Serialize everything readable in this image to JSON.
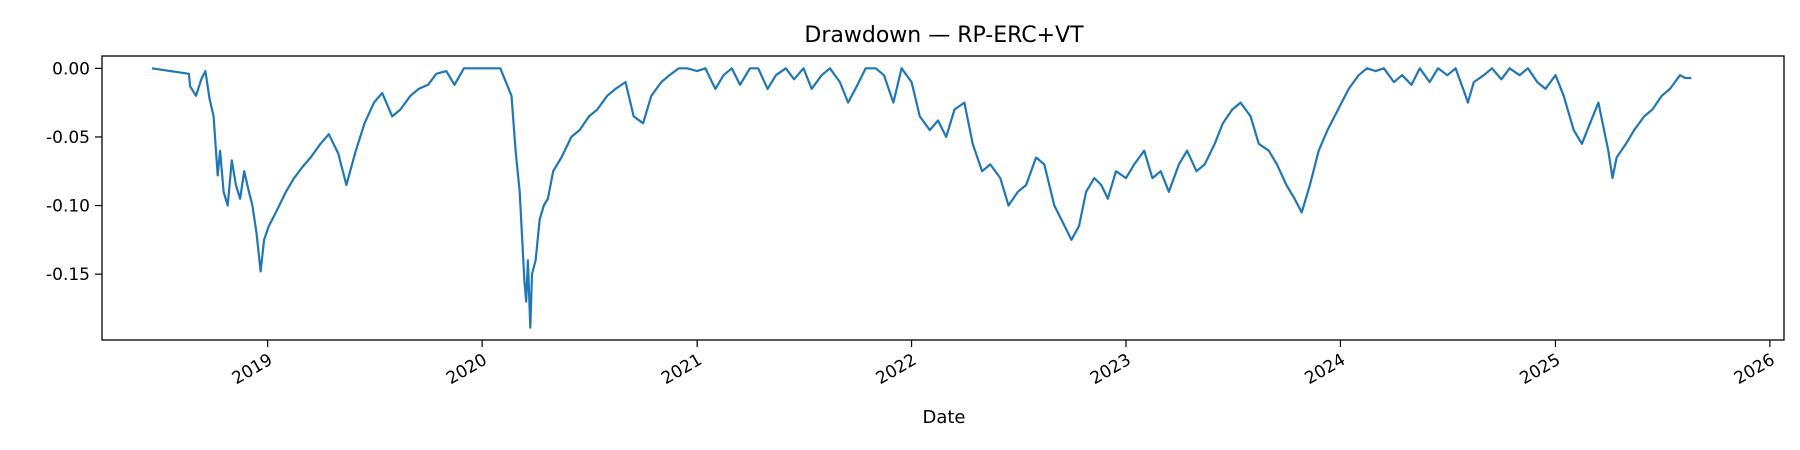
{
  "chart_data": {
    "type": "line",
    "title": "Drawdown — RP-ERC+VT",
    "xlabel": "Date",
    "ylabel": "",
    "xlim": [
      "2018-03-25",
      "2026-01-25"
    ],
    "ylim": [
      -0.198,
      0.009
    ],
    "x_ticks": [
      "2019",
      "2020",
      "2021",
      "2022",
      "2023",
      "2024",
      "2025",
      "2026"
    ],
    "y_ticks": [
      "0.00",
      "-0.05",
      "-0.10",
      "-0.15"
    ],
    "grid": false,
    "legend": "none",
    "line_color": "#1f77b4",
    "series": [
      {
        "x": [
          "2018-06-18",
          "2018-08-20",
          "2018-08-22",
          "2018-09-01",
          "2018-09-10",
          "2018-09-17",
          "2018-09-24",
          "2018-10-01",
          "2018-10-08",
          "2018-10-12",
          "2018-10-18",
          "2018-10-25",
          "2018-11-01",
          "2018-11-08",
          "2018-11-15",
          "2018-11-22",
          "2018-11-29",
          "2018-12-06",
          "2018-12-13",
          "2018-12-20",
          "2018-12-26",
          "2019-01-03",
          "2019-01-15",
          "2019-02-01",
          "2019-02-15",
          "2019-03-01",
          "2019-03-15",
          "2019-04-01",
          "2019-04-15",
          "2019-05-01",
          "2019-05-15",
          "2019-05-31",
          "2019-06-15",
          "2019-07-01",
          "2019-07-15",
          "2019-08-01",
          "2019-08-15",
          "2019-09-01",
          "2019-09-15",
          "2019-10-01",
          "2019-10-15",
          "2019-11-01",
          "2019-11-15",
          "2019-12-01",
          "2019-12-15",
          "2020-01-01",
          "2020-01-15",
          "2020-02-01",
          "2020-02-20",
          "2020-02-27",
          "2020-03-05",
          "2020-03-10",
          "2020-03-13",
          "2020-03-16",
          "2020-03-19",
          "2020-03-23",
          "2020-03-26",
          "2020-04-01",
          "2020-04-08",
          "2020-04-15",
          "2020-04-22",
          "2020-05-01",
          "2020-05-15",
          "2020-06-01",
          "2020-06-15",
          "2020-07-01",
          "2020-07-15",
          "2020-08-01",
          "2020-08-15",
          "2020-09-01",
          "2020-09-15",
          "2020-10-01",
          "2020-10-15",
          "2020-11-01",
          "2020-11-15",
          "2020-12-01",
          "2020-12-15",
          "2021-01-01",
          "2021-01-15",
          "2021-02-01",
          "2021-02-15",
          "2021-03-01",
          "2021-03-15",
          "2021-04-01",
          "2021-04-15",
          "2021-05-01",
          "2021-05-15",
          "2021-06-01",
          "2021-06-15",
          "2021-07-01",
          "2021-07-15",
          "2021-08-01",
          "2021-08-15",
          "2021-09-01",
          "2021-09-15",
          "2021-10-01",
          "2021-10-15",
          "2021-11-01",
          "2021-11-15",
          "2021-12-01",
          "2021-12-15",
          "2022-01-01",
          "2022-01-15",
          "2022-02-01",
          "2022-02-15",
          "2022-03-01",
          "2022-03-15",
          "2022-04-01",
          "2022-04-15",
          "2022-05-01",
          "2022-05-15",
          "2022-06-01",
          "2022-06-15",
          "2022-07-01",
          "2022-07-15",
          "2022-08-01",
          "2022-08-15",
          "2022-09-01",
          "2022-09-15",
          "2022-09-30",
          "2022-10-13",
          "2022-10-25",
          "2022-11-08",
          "2022-11-20",
          "2022-12-01",
          "2022-12-15",
          "2023-01-01",
          "2023-01-15",
          "2023-02-01",
          "2023-02-15",
          "2023-03-01",
          "2023-03-15",
          "2023-04-01",
          "2023-04-15",
          "2023-05-01",
          "2023-05-15",
          "2023-06-01",
          "2023-06-15",
          "2023-07-01",
          "2023-07-15",
          "2023-08-01",
          "2023-08-15",
          "2023-09-01",
          "2023-09-15",
          "2023-10-01",
          "2023-10-15",
          "2023-10-27",
          "2023-11-10",
          "2023-11-25",
          "2023-12-10",
          "2023-12-28",
          "2024-01-15",
          "2024-02-01",
          "2024-02-15",
          "2024-03-01",
          "2024-03-15",
          "2024-04-01",
          "2024-04-15",
          "2024-05-01",
          "2024-05-15",
          "2024-06-01",
          "2024-06-15",
          "2024-07-01",
          "2024-07-15",
          "2024-08-01",
          "2024-08-05",
          "2024-08-15",
          "2024-09-01",
          "2024-09-15",
          "2024-10-01",
          "2024-10-15",
          "2024-11-01",
          "2024-11-15",
          "2024-12-01",
          "2024-12-15",
          "2025-01-01",
          "2025-01-15",
          "2025-02-01",
          "2025-02-15",
          "2025-03-01",
          "2025-03-15",
          "2025-04-01",
          "2025-04-08",
          "2025-04-15",
          "2025-05-01",
          "2025-05-15",
          "2025-06-01",
          "2025-06-15",
          "2025-07-01",
          "2025-07-15",
          "2025-08-01",
          "2025-08-10",
          "2025-08-20"
        ],
        "y": [
          0.0,
          -0.004,
          -0.013,
          -0.02,
          -0.008,
          -0.002,
          -0.022,
          -0.035,
          -0.078,
          -0.06,
          -0.09,
          -0.1,
          -0.067,
          -0.085,
          -0.095,
          -0.075,
          -0.088,
          -0.1,
          -0.12,
          -0.148,
          -0.125,
          -0.115,
          -0.105,
          -0.09,
          -0.08,
          -0.072,
          -0.065,
          -0.055,
          -0.048,
          -0.062,
          -0.085,
          -0.06,
          -0.04,
          -0.025,
          -0.018,
          -0.035,
          -0.03,
          -0.02,
          -0.015,
          -0.012,
          -0.004,
          -0.002,
          -0.012,
          -0.0,
          -0.0,
          -0.0,
          -0.0,
          -0.0,
          -0.02,
          -0.06,
          -0.09,
          -0.13,
          -0.155,
          -0.17,
          -0.14,
          -0.189,
          -0.15,
          -0.14,
          -0.11,
          -0.1,
          -0.095,
          -0.075,
          -0.065,
          -0.05,
          -0.045,
          -0.035,
          -0.03,
          -0.02,
          -0.015,
          -0.01,
          -0.035,
          -0.04,
          -0.02,
          -0.01,
          -0.005,
          -0.0,
          -0.0,
          -0.002,
          -0.0,
          -0.015,
          -0.005,
          -0.0,
          -0.012,
          -0.0,
          -0.0,
          -0.015,
          -0.005,
          -0.0,
          -0.008,
          -0.0,
          -0.015,
          -0.005,
          -0.0,
          -0.01,
          -0.025,
          -0.012,
          -0.0,
          -0.0,
          -0.005,
          -0.025,
          -0.0,
          -0.01,
          -0.035,
          -0.045,
          -0.038,
          -0.05,
          -0.03,
          -0.025,
          -0.055,
          -0.075,
          -0.07,
          -0.08,
          -0.1,
          -0.09,
          -0.085,
          -0.065,
          -0.07,
          -0.1,
          -0.112,
          -0.125,
          -0.115,
          -0.09,
          -0.08,
          -0.085,
          -0.095,
          -0.075,
          -0.08,
          -0.07,
          -0.06,
          -0.08,
          -0.075,
          -0.09,
          -0.07,
          -0.06,
          -0.075,
          -0.07,
          -0.055,
          -0.04,
          -0.03,
          -0.025,
          -0.035,
          -0.055,
          -0.06,
          -0.07,
          -0.085,
          -0.095,
          -0.105,
          -0.085,
          -0.06,
          -0.045,
          -0.03,
          -0.015,
          -0.005,
          -0.0,
          -0.002,
          -0.0,
          -0.01,
          -0.005,
          -0.012,
          -0.0,
          -0.01,
          -0.0,
          -0.005,
          -0.0,
          -0.02,
          -0.025,
          -0.01,
          -0.005,
          -0.0,
          -0.008,
          -0.0,
          -0.005,
          -0.0,
          -0.01,
          -0.015,
          -0.005,
          -0.02,
          -0.045,
          -0.055,
          -0.04,
          -0.025,
          -0.06,
          -0.08,
          -0.065,
          -0.055,
          -0.045,
          -0.035,
          -0.03,
          -0.02,
          -0.015,
          -0.005,
          -0.007,
          -0.007
        ]
      }
    ]
  }
}
